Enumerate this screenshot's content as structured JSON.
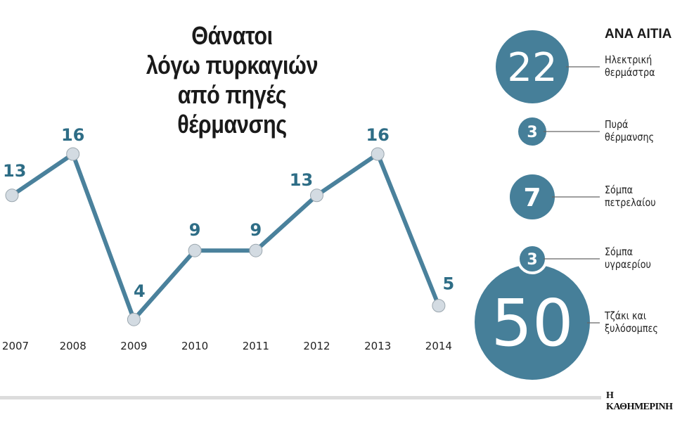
{
  "chart_data": [
    {
      "type": "line",
      "title": [
        "Θάνατοι",
        "λόγω πυρκαγιών",
        "από πηγές",
        "θέρμανσης"
      ],
      "x": [
        "2007",
        "2008",
        "2009",
        "2010",
        "2011",
        "2012",
        "2013",
        "2014"
      ],
      "values": [
        13,
        16,
        4,
        9,
        9,
        13,
        16,
        5
      ],
      "data_labels": [
        "13",
        "16",
        "4",
        "9",
        "9",
        "13",
        "16",
        "5"
      ],
      "ylim": [
        4,
        16
      ],
      "grid": false,
      "color": "#4a819c"
    },
    {
      "type": "bubble",
      "title": "ΑΝΑ ΑΙΤΙΑ",
      "items": [
        {
          "value": 22,
          "label": "22",
          "name": [
            "Ηλεκτρική",
            "θερμάστρα"
          ]
        },
        {
          "value": 3,
          "label": "3",
          "name": [
            "Πυρά",
            "θέρμανσης"
          ]
        },
        {
          "value": 7,
          "label": "7",
          "name": [
            "Σόμπα",
            "πετρελαίου"
          ]
        },
        {
          "value": 3,
          "label": "3",
          "name": [
            "Σόμπα",
            "υγραερίου"
          ]
        },
        {
          "value": 50,
          "label": "50",
          "name": [
            "Τζάκι και",
            "ξυλόσομπες"
          ]
        }
      ],
      "color": "#467f99"
    }
  ],
  "logo": "Η ΚΑΘΗΜΕΡΙΝΗ"
}
